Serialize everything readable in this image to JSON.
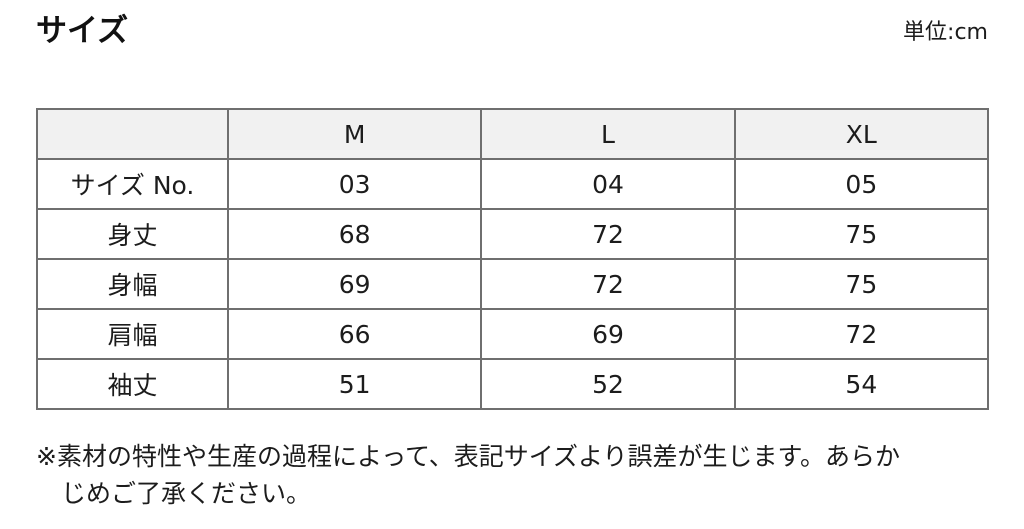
{
  "header": {
    "title": "サイズ",
    "unit": "単位:cm"
  },
  "table": {
    "columns": [
      "",
      "M",
      "L",
      "XL"
    ],
    "rows": [
      {
        "label": "サイズ No.",
        "values": [
          "03",
          "04",
          "05"
        ]
      },
      {
        "label": "身丈",
        "values": [
          "68",
          "72",
          "75"
        ]
      },
      {
        "label": "身幅",
        "values": [
          "69",
          "72",
          "75"
        ]
      },
      {
        "label": "肩幅",
        "values": [
          "66",
          "69",
          "72"
        ]
      },
      {
        "label": "袖丈",
        "values": [
          "51",
          "52",
          "54"
        ]
      }
    ]
  },
  "note": {
    "lines": [
      "※素材の特性や生産の過程によって、表記サイズより誤差が生じます。あらか",
      "じめご了承ください。"
    ],
    "full_text": "※素材の特性や生産の過程によって、表記サイズより誤差が生じます。あらかじめご了承ください。"
  },
  "colors": {
    "border": "#6f6f6f",
    "header_bg": "#f1f1f1",
    "text": "#1c1c1c",
    "background": "#ffffff"
  }
}
